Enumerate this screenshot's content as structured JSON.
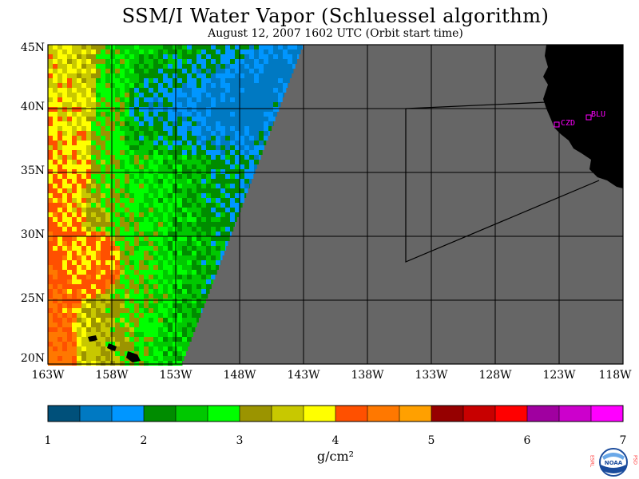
{
  "title": "SSM/I Water Vapor (Schluessel algorithm)",
  "subtitle": "August 12, 2007  1602 UTC  (Orbit start time)",
  "lat_labels": [
    "45N",
    "40N",
    "35N",
    "30N",
    "25N",
    "20N"
  ],
  "lon_labels": [
    "163W",
    "158W",
    "153W",
    "148W",
    "143W",
    "138W",
    "133W",
    "128W",
    "123W",
    "118W"
  ],
  "stations": [
    {
      "code": "CZD",
      "color": "#ff00ff"
    },
    {
      "code": "BLU",
      "color": "#ff00ff"
    }
  ],
  "colorbar": {
    "ticks": [
      "1",
      "2",
      "3",
      "4",
      "5",
      "6",
      "7"
    ],
    "units": "g/cm²",
    "colors": [
      "#00507a",
      "#0079c2",
      "#0096ff",
      "#008c00",
      "#00c800",
      "#00ff00",
      "#9b9400",
      "#c8c800",
      "#ffff00",
      "#ff5000",
      "#ff7800",
      "#ffa000",
      "#960000",
      "#c80000",
      "#ff0000",
      "#a000a0",
      "#cc00cc",
      "#ff00ff"
    ]
  },
  "map_colors": {
    "nodata": "#666666",
    "land": "#000000",
    "grid": "#000000"
  },
  "logo_text": {
    "left": "ESRL",
    "right": "PSD",
    "center": "NOAA"
  }
}
